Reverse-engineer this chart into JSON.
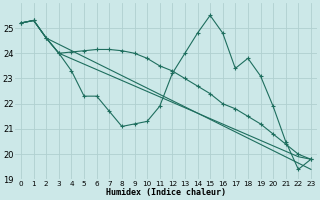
{
  "xlabel": "Humidex (Indice chaleur)",
  "background_color": "#cce8e8",
  "grid_color": "#b0d0d0",
  "line_color": "#1e6e5e",
  "ylim": [
    19,
    26
  ],
  "xlim": [
    -0.5,
    23.5
  ],
  "yticks": [
    19,
    20,
    21,
    22,
    23,
    24,
    25
  ],
  "xticks": [
    0,
    1,
    2,
    3,
    4,
    5,
    6,
    7,
    8,
    9,
    10,
    11,
    12,
    13,
    14,
    15,
    16,
    17,
    18,
    19,
    20,
    21,
    22,
    23
  ],
  "series": [
    {
      "x": [
        0,
        1,
        2,
        3,
        4,
        5,
        6,
        7,
        8,
        9,
        10,
        11,
        12,
        13,
        14,
        15,
        16,
        17,
        18,
        19,
        20,
        21,
        22,
        23
      ],
      "y": [
        25.2,
        25.3,
        24.6,
        24.0,
        23.3,
        22.3,
        22.3,
        21.7,
        21.1,
        21.2,
        21.3,
        21.9,
        23.2,
        24.0,
        24.8,
        25.5,
        24.8,
        23.4,
        23.8,
        23.1,
        21.9,
        20.5,
        19.4,
        19.8
      ]
    },
    {
      "x": [
        0,
        1,
        2,
        23
      ],
      "y": [
        25.2,
        25.3,
        24.6,
        19.4
      ]
    },
    {
      "x": [
        0,
        1,
        2,
        3,
        22,
        23
      ],
      "y": [
        25.2,
        25.3,
        24.6,
        24.0,
        19.9,
        19.8
      ]
    },
    {
      "x": [
        0,
        1,
        2,
        3,
        4,
        5,
        6,
        7,
        8,
        9,
        10,
        11,
        12,
        13,
        14,
        15,
        16,
        17,
        18,
        19,
        20,
        21,
        22,
        23
      ],
      "y": [
        25.2,
        25.3,
        24.6,
        24.0,
        24.05,
        24.1,
        24.15,
        24.15,
        24.1,
        24.0,
        23.8,
        23.5,
        23.3,
        23.0,
        22.7,
        22.4,
        22.0,
        21.8,
        21.5,
        21.2,
        20.8,
        20.4,
        20.0,
        19.8
      ]
    }
  ]
}
